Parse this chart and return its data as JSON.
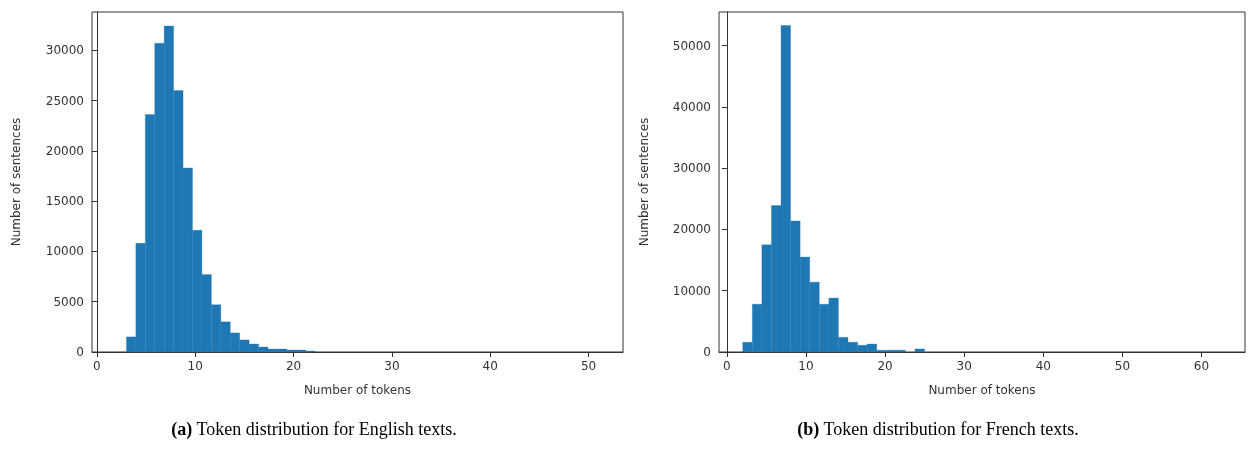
{
  "chart_data": [
    {
      "type": "histogram",
      "xlabel": "Number of tokens",
      "ylabel": "Number of sentences",
      "color": "#1f77b4",
      "bins": [
        3,
        3.96,
        4.92,
        5.88,
        6.84,
        7.8,
        8.76,
        9.72,
        10.68,
        11.64,
        12.6,
        13.56,
        14.52,
        15.48,
        16.44,
        17.4,
        18.36,
        19.32,
        20.28,
        21.24,
        22.2,
        23.16,
        24.12,
        25.08,
        26.04,
        27,
        27.96,
        28.92,
        29.88,
        30.84,
        31.8,
        32.76,
        33.72,
        34.68,
        35.64,
        36.6,
        37.56,
        38.52,
        39.48,
        40.44,
        41.4,
        42.36,
        43.32,
        44.28,
        45.24,
        46.2,
        47.16,
        48.12,
        49.08,
        50.04,
        51
      ],
      "values": [
        1500,
        10800,
        23600,
        30700,
        32400,
        26000,
        18300,
        12100,
        7700,
        4700,
        3000,
        1900,
        1200,
        800,
        500,
        300,
        300,
        200,
        200,
        100,
        0,
        0,
        0,
        0,
        0,
        0,
        0,
        0,
        0,
        0,
        0,
        0,
        0,
        0,
        0,
        0,
        0,
        0,
        0,
        0,
        0,
        0,
        0,
        0,
        0,
        0,
        0,
        0,
        0,
        0
      ],
      "xlim": [
        -0.5,
        53.5
      ],
      "xticks": [
        0,
        10,
        20,
        30,
        40,
        50
      ],
      "ylim": [
        0,
        33800
      ],
      "yticks": [
        0,
        5000,
        10000,
        15000,
        20000,
        25000,
        30000
      ],
      "annotations": [
        "(a) Token distribution for English texts."
      ]
    },
    {
      "type": "histogram",
      "xlabel": "Number of tokens",
      "ylabel": "Number of sentences",
      "color": "#1f77b4",
      "bins": [
        2,
        3.21,
        4.42,
        5.63,
        6.84,
        8.05,
        9.26,
        10.47,
        11.68,
        12.89,
        14.1,
        15.31,
        16.52,
        17.73,
        18.94,
        20.15,
        21.36,
        22.57,
        23.78,
        24.99,
        26.2,
        27.41,
        28.62,
        29.83,
        31.04,
        32.25,
        33.46,
        34.67,
        35.88,
        37.09,
        38.3,
        39.51,
        40.72,
        41.93,
        43.14,
        44.35,
        45.56,
        46.77,
        47.98,
        49.19,
        50.4,
        51.61,
        52.82,
        54.03,
        55.24,
        56.45,
        57.66,
        58.87,
        60.08,
        61.29,
        62.5
      ],
      "values": [
        1600,
        7800,
        17500,
        23900,
        53300,
        21400,
        15500,
        11400,
        7800,
        8800,
        2400,
        1600,
        1100,
        1300,
        300,
        300,
        300,
        0,
        500,
        0,
        0,
        0,
        0,
        0,
        0,
        0,
        0,
        0,
        0,
        0,
        0,
        0,
        0,
        0,
        0,
        0,
        0,
        0,
        0,
        0,
        0,
        0,
        0,
        0,
        0,
        0,
        0,
        0,
        0,
        0
      ],
      "xlim": [
        -1,
        65.5
      ],
      "xticks": [
        0,
        10,
        20,
        30,
        40,
        50,
        60
      ],
      "ylim": [
        0,
        55500
      ],
      "yticks": [
        0,
        10000,
        20000,
        30000,
        40000,
        50000
      ],
      "annotations": [
        "(b) Token distribution for French texts."
      ]
    }
  ]
}
